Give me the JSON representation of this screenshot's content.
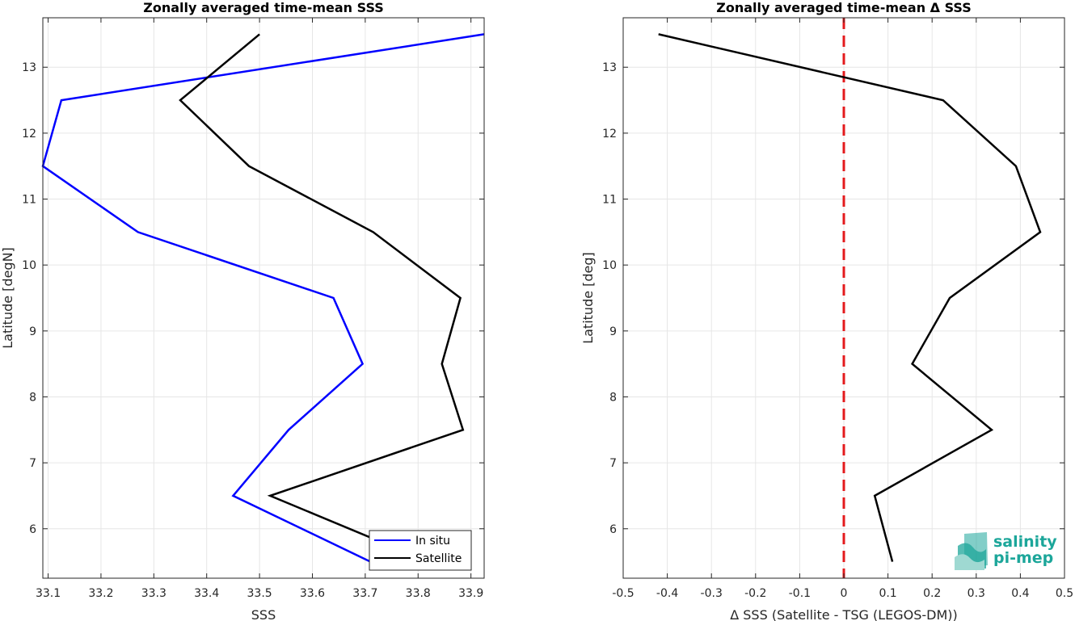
{
  "chart_data": [
    {
      "type": "line",
      "title": "Zonally averaged time-mean SSS",
      "xlabel": "SSS",
      "ylabel": "Latitude [degN]",
      "xlim": [
        33.09,
        33.925
      ],
      "ylim": [
        5.25,
        13.75
      ],
      "xticks": [
        33.1,
        33.2,
        33.3,
        33.4,
        33.5,
        33.6,
        33.7,
        33.8,
        33.9
      ],
      "yticks": [
        6,
        7,
        8,
        9,
        10,
        11,
        12,
        13
      ],
      "grid": true,
      "legend_position": "bottom-right",
      "series": [
        {
          "name": "In situ",
          "color": "#0000ff",
          "x": [
            33.71,
            33.45,
            33.555,
            33.695,
            33.64,
            33.27,
            33.09,
            33.125,
            33.925
          ],
          "y": [
            5.5,
            6.5,
            7.5,
            8.5,
            9.5,
            10.5,
            11.5,
            12.5,
            13.5
          ]
        },
        {
          "name": "Satellite",
          "color": "#000000",
          "x": [
            33.82,
            33.52,
            33.885,
            33.845,
            33.88,
            33.715,
            33.48,
            33.35,
            33.5
          ],
          "y": [
            5.5,
            6.5,
            7.5,
            8.5,
            9.5,
            10.5,
            11.5,
            12.5,
            13.5
          ]
        }
      ]
    },
    {
      "type": "line",
      "title": "Zonally averaged time-mean Δ SSS",
      "xlabel": "Δ SSS (Satellite - TSG (LEGOS-DM))",
      "ylabel": "Latitude [deg]",
      "xlim": [
        -0.5,
        0.5
      ],
      "ylim": [
        5.25,
        13.75
      ],
      "xticks": [
        -0.5,
        -0.4,
        -0.3,
        -0.2,
        -0.1,
        0,
        0.1,
        0.2,
        0.3,
        0.4,
        0.5
      ],
      "yticks": [
        6,
        7,
        8,
        9,
        10,
        11,
        12,
        13
      ],
      "grid": true,
      "reference_line": {
        "x": 0,
        "color": "#e31a1c",
        "style": "dashed"
      },
      "series": [
        {
          "color": "#000000",
          "x": [
            0.11,
            0.07,
            0.335,
            0.155,
            0.24,
            0.445,
            0.39,
            0.225,
            -0.42
          ],
          "y": [
            5.5,
            6.5,
            7.5,
            8.5,
            9.5,
            10.5,
            11.5,
            12.5,
            13.5
          ]
        }
      ]
    }
  ],
  "logo": {
    "line1": "salinity",
    "line2": "pi-mep",
    "color": "#1ca69a"
  }
}
